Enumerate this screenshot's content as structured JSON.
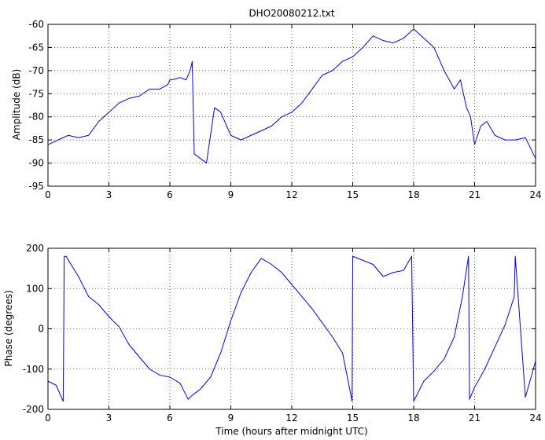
{
  "figure": {
    "title": "DHO20080212.txt"
  },
  "chart_data": [
    {
      "type": "line",
      "title": "DHO20080212.txt",
      "xlabel": "",
      "ylabel": "Amplitude (dB)",
      "xlim": [
        0,
        24
      ],
      "ylim": [
        -95,
        -60
      ],
      "xticks": [
        0,
        3,
        6,
        9,
        12,
        15,
        18,
        21,
        24
      ],
      "yticks": [
        -95,
        -90,
        -85,
        -80,
        -75,
        -70,
        -65,
        -60
      ],
      "grid": true,
      "color": "#0000ff",
      "series": [
        {
          "x": [
            0,
            0.5,
            1,
            1.5,
            2,
            2.5,
            3,
            3.5,
            4,
            4.5,
            5,
            5.5,
            5.9,
            6.0,
            6.1,
            6.5,
            6.8,
            7.0,
            7.1,
            7.2,
            7.5,
            7.8,
            8.0,
            8.2,
            8.5,
            9.0,
            9.5,
            10.0,
            10.5,
            11.0,
            11.5,
            12.0,
            12.5,
            13.0,
            13.5,
            14.0,
            14.5,
            15.0,
            15.5,
            16.0,
            16.5,
            17.0,
            17.5,
            18.0,
            18.5,
            19.0,
            19.5,
            20.0,
            20.3,
            20.6,
            20.8,
            21.0,
            21.3,
            21.6,
            22.0,
            22.5,
            23.0,
            23.5,
            24.0
          ],
          "y": [
            -86,
            -85,
            -84,
            -84.5,
            -84,
            -81,
            -79,
            -77,
            -76,
            -75.5,
            -74,
            -74,
            -73,
            -72,
            -72,
            -71.5,
            -72,
            -70,
            -68,
            -88,
            -89,
            -90,
            -84,
            -78,
            -79,
            -84,
            -85,
            -84,
            -83,
            -82,
            -80,
            -79,
            -77,
            -74,
            -71,
            -70,
            -68,
            -67,
            -65,
            -62.5,
            -63.5,
            -64,
            -63,
            -61,
            -63,
            -65,
            -70,
            -74,
            -72,
            -78,
            -80,
            -86,
            -82,
            -81,
            -84,
            -85,
            -85,
            -84.5,
            -89
          ]
        }
      ]
    },
    {
      "type": "line",
      "title": "",
      "xlabel": "Time (hours after midnight UTC)",
      "ylabel": "Phase (degrees)",
      "xlim": [
        0,
        24
      ],
      "ylim": [
        -200,
        200
      ],
      "xticks": [
        0,
        3,
        6,
        9,
        12,
        15,
        18,
        21,
        24
      ],
      "yticks": [
        -200,
        -100,
        0,
        100,
        200
      ],
      "grid": true,
      "color": "#0000ff",
      "series": [
        {
          "x": [
            0,
            0.4,
            0.75,
            0.8,
            0.9,
            0.95,
            1.5,
            2.0,
            2.5,
            3.0,
            3.5,
            4.0,
            4.5,
            5.0,
            5.5,
            6.0,
            6.5,
            6.9,
            7.1,
            7.5,
            8.0,
            8.5,
            9.0,
            9.5,
            10.0,
            10.5,
            11.0,
            11.5,
            12.0,
            12.5,
            13.0,
            13.5,
            14.0,
            14.5,
            14.97,
            15.0,
            15.5,
            16.0,
            16.5,
            17.0,
            17.5,
            17.9,
            18.0,
            18.5,
            19.0,
            19.5,
            20.0,
            20.4,
            20.7,
            20.75,
            21.0,
            21.5,
            22.0,
            22.5,
            22.95,
            23.0,
            23.5,
            24.0
          ],
          "y": [
            -130,
            -140,
            -180,
            180,
            180,
            175,
            130,
            80,
            60,
            30,
            5,
            -40,
            -70,
            -100,
            -115,
            -120,
            -135,
            -175,
            -165,
            -150,
            -120,
            -60,
            20,
            90,
            140,
            175,
            160,
            140,
            110,
            80,
            50,
            15,
            -20,
            -60,
            -180,
            180,
            170,
            160,
            130,
            140,
            145,
            180,
            -180,
            -130,
            -105,
            -75,
            -20,
            80,
            180,
            -175,
            -145,
            -100,
            -45,
            10,
            80,
            180,
            -170,
            -80
          ]
        }
      ]
    }
  ]
}
